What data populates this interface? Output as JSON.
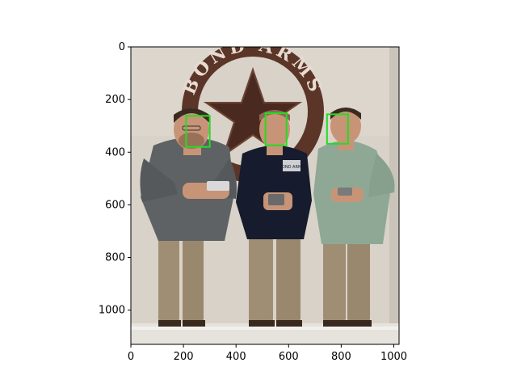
{
  "figure": {
    "image_content": {
      "sign_text": "BOND ARMS",
      "shirt_text": "BOND ARMS",
      "colors": {
        "wall": "#d8d2c8",
        "floor": "#e6e3dd",
        "sign_brown": "#5a3528",
        "box_green": "#22dd22",
        "shirt_left": "#5e6264",
        "shirt_mid": "#161b2e",
        "shirt_right": "#8fa896",
        "pants": "#a08e74",
        "skin": "#c89478",
        "hair": "#3a2a20"
      }
    }
  },
  "chart_data": {
    "type": "image",
    "xlim": [
      0,
      1020
    ],
    "ylim": [
      1130,
      0
    ],
    "x_ticks": [
      0,
      200,
      400,
      600,
      800,
      1000
    ],
    "y_ticks": [
      0,
      200,
      400,
      600,
      800,
      1000
    ],
    "x_tick_labels": [
      "0",
      "200",
      "400",
      "600",
      "800",
      "1000"
    ],
    "y_tick_labels": [
      "0",
      "200",
      "400",
      "600",
      "800",
      "1000"
    ],
    "face_boxes": [
      {
        "x0": 210,
        "y0": 262,
        "x1": 300,
        "y1": 380
      },
      {
        "x0": 512,
        "y0": 252,
        "x1": 592,
        "y1": 374
      },
      {
        "x0": 746,
        "y0": 256,
        "x1": 826,
        "y1": 368
      }
    ]
  }
}
